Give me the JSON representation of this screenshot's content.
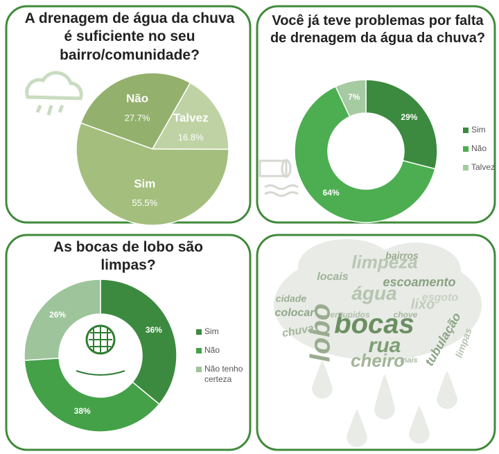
{
  "chart_data": [
    {
      "type": "pie",
      "title": "A drenagem de água da chuva é suficiente no seu bairro/comunidade?",
      "categories": [
        "Não",
        "Talvez",
        "Sim"
      ],
      "values": [
        27.7,
        16.8,
        55.5
      ],
      "value_labels": [
        "27.7%",
        "16.8%",
        "55.5%"
      ],
      "colors": [
        "#93b06c",
        "#bfd2a4",
        "#a4bf7d"
      ],
      "legend": false
    },
    {
      "type": "donut",
      "title": "Você já teve problemas por falta de drenagem da água da chuva?",
      "categories": [
        "Sim",
        "Não",
        "Talvez"
      ],
      "values": [
        29,
        64,
        7
      ],
      "value_labels": [
        "29%",
        "64%",
        "7%"
      ],
      "colors": [
        "#3b8a3f",
        "#4cae50",
        "#a6caa1"
      ],
      "legend": "right"
    },
    {
      "type": "donut",
      "title": "As bocas de lobo são limpas?",
      "categories": [
        "Sim",
        "Não",
        "Não tenho certeza"
      ],
      "values": [
        36,
        38,
        26
      ],
      "value_labels": [
        "36%",
        "38%",
        "26%"
      ],
      "colors": [
        "#3c8a40",
        "#44a148",
        "#9dc49a"
      ],
      "legend": "right"
    }
  ],
  "wordcloud": {
    "words": [
      "bocas",
      "lobo",
      "rua",
      "cheiro",
      "água",
      "limpeza",
      "escoamento",
      "tubulação",
      "lixo",
      "esgoto",
      "bairros",
      "locais",
      "cidade",
      "colocar",
      "chuva",
      "chove",
      "limpas",
      "mais",
      "entupidos"
    ]
  }
}
